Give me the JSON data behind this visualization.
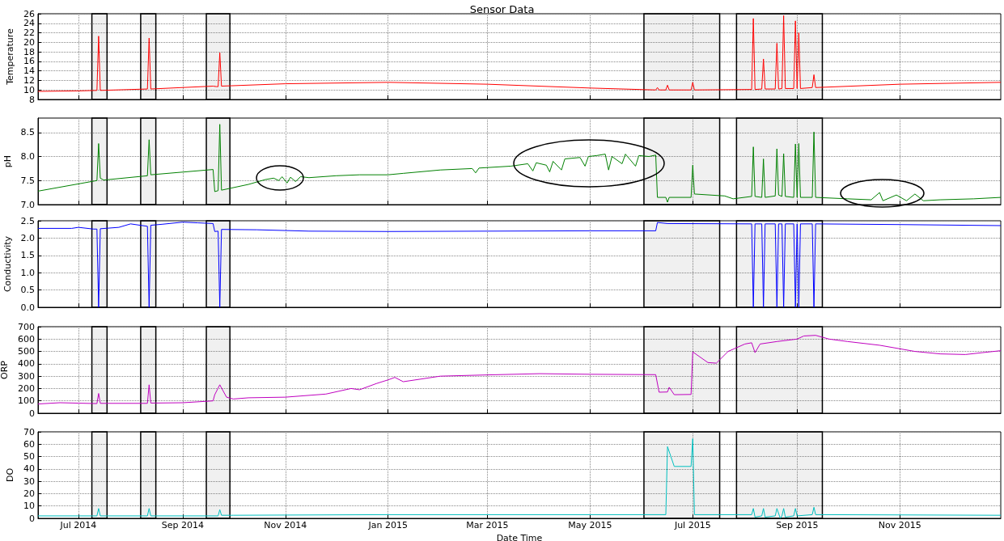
{
  "chart_data": [
    {
      "type": "line",
      "title": "Sensor Data",
      "ylabel": "Temperature",
      "color": "#ff0000",
      "grid": true,
      "tick_labels": "y",
      "xlim": [
        "2014-06-07",
        "2015-12-31"
      ],
      "xticks": [
        {
          "value": "2014-07",
          "label": null
        },
        {
          "value": "2014-09",
          "label": null
        },
        {
          "value": "2014-11",
          "label": null
        },
        {
          "value": "2015-01",
          "label": null
        },
        {
          "value": "2015-03",
          "label": null
        },
        {
          "value": "2015-05",
          "label": null
        },
        {
          "value": "2015-07",
          "label": null
        },
        {
          "value": "2015-09",
          "label": null
        },
        {
          "value": "2015-11",
          "label": null
        }
      ],
      "ylim": [
        8,
        26
      ],
      "yticks": [
        8,
        10,
        12,
        14,
        16,
        18,
        20,
        22,
        24,
        26
      ],
      "bands": [
        {
          "axis": "x",
          "from": "2014-07-09",
          "to": "2014-07-18",
          "color": "#000000"
        },
        {
          "axis": "x",
          "from": "2014-08-07",
          "to": "2014-08-16",
          "color": "#000000"
        },
        {
          "axis": "x",
          "from": "2014-09-15",
          "to": "2014-09-29",
          "color": "#000000"
        },
        {
          "axis": "x",
          "from": "2015-06-02",
          "to": "2015-07-17",
          "color": "#000000"
        },
        {
          "axis": "x",
          "from": "2015-07-27",
          "to": "2015-09-16",
          "color": "#000000"
        }
      ],
      "x": [
        "2014-06-07",
        "2014-07-01",
        "2014-07-12",
        "2014-07-13",
        "2014-07-14",
        "2014-08-11",
        "2014-08-12",
        "2014-08-13",
        "2014-09-19",
        "2014-09-21",
        "2014-09-22",
        "2014-09-23",
        "2014-09-24",
        "2014-11-01",
        "2015-01-01",
        "2015-03-01",
        "2015-05-01",
        "2015-06-09",
        "2015-06-10",
        "2015-06-11",
        "2015-06-15",
        "2015-06-16",
        "2015-06-17",
        "2015-06-30",
        "2015-07-01",
        "2015-07-02",
        "2015-08-05",
        "2015-08-06",
        "2015-08-07",
        "2015-08-11",
        "2015-08-12",
        "2015-08-13",
        "2015-08-19",
        "2015-08-20",
        "2015-08-21",
        "2015-08-23",
        "2015-08-24",
        "2015-08-25",
        "2015-08-30",
        "2015-08-31",
        "2015-09-01",
        "2015-09-02",
        "2015-09-03",
        "2015-09-10",
        "2015-09-11",
        "2015-09-12",
        "2015-11-01",
        "2015-12-31"
      ],
      "values": [
        9.7,
        9.8,
        9.9,
        21.3,
        9.9,
        10.2,
        20.9,
        10.2,
        10.8,
        10.7,
        10.7,
        17.8,
        10.8,
        11.3,
        11.6,
        11.2,
        10.4,
        10.0,
        10.5,
        10.0,
        10.0,
        11.0,
        10.0,
        10.0,
        11.6,
        10.0,
        10.1,
        25.0,
        10.1,
        10.2,
        16.5,
        10.2,
        10.2,
        19.8,
        10.2,
        10.3,
        25.6,
        10.3,
        10.3,
        24.5,
        10.3,
        22.0,
        10.3,
        10.5,
        13.2,
        10.5,
        11.2,
        11.6
      ]
    },
    {
      "type": "line",
      "ylabel": "pH",
      "color": "#008000",
      "grid": true,
      "tick_labels": "y",
      "xlim": [
        "2014-06-07",
        "2015-12-31"
      ],
      "xticks": [
        {
          "value": "2014-07",
          "label": null
        },
        {
          "value": "2014-09",
          "label": null
        },
        {
          "value": "2014-11",
          "label": null
        },
        {
          "value": "2015-01",
          "label": null
        },
        {
          "value": "2015-03",
          "label": null
        },
        {
          "value": "2015-05",
          "label": null
        },
        {
          "value": "2015-07",
          "label": null
        },
        {
          "value": "2015-09",
          "label": null
        },
        {
          "value": "2015-11",
          "label": null
        }
      ],
      "ylim": [
        7.0,
        8.8
      ],
      "yticks": [
        {
          "value": 7,
          "label": "7.0"
        },
        7.5,
        {
          "value": 8,
          "label": "8.0"
        },
        8.5
      ],
      "bands": [
        {
          "axis": "x",
          "from": "2014-07-09",
          "to": "2014-07-18",
          "color": "#000000"
        },
        {
          "axis": "x",
          "from": "2014-08-07",
          "to": "2014-08-16",
          "color": "#000000"
        },
        {
          "axis": "x",
          "from": "2014-09-15",
          "to": "2014-09-29",
          "color": "#000000"
        },
        {
          "axis": "x",
          "from": "2015-06-02",
          "to": "2015-07-17",
          "color": "#000000"
        },
        {
          "axis": "x",
          "from": "2015-07-27",
          "to": "2015-09-16",
          "color": "#000000"
        }
      ],
      "x": [
        "2014-06-07",
        "2014-07-12",
        "2014-07-13",
        "2014-07-14",
        "2014-07-16",
        "2014-08-11",
        "2014-08-12",
        "2014-08-13",
        "2014-09-19",
        "2014-09-20",
        "2014-09-22",
        "2014-09-23",
        "2014-09-24",
        "2014-10-10",
        "2014-10-20",
        "2014-10-25",
        "2014-10-28",
        "2014-10-30",
        "2014-11-02",
        "2014-11-04",
        "2014-11-07",
        "2014-11-10",
        "2014-11-15",
        "2014-12-01",
        "2014-12-15",
        "2015-01-01",
        "2015-01-10",
        "2015-02-01",
        "2015-02-20",
        "2015-02-22",
        "2015-02-24",
        "2015-03-15",
        "2015-03-25",
        "2015-03-28",
        "2015-03-30",
        "2015-04-05",
        "2015-04-07",
        "2015-04-09",
        "2015-04-14",
        "2015-04-16",
        "2015-04-25",
        "2015-04-28",
        "2015-04-30",
        "2015-05-05",
        "2015-05-10",
        "2015-05-12",
        "2015-05-14",
        "2015-05-20",
        "2015-05-22",
        "2015-05-28",
        "2015-05-30",
        "2015-06-05",
        "2015-06-09",
        "2015-06-10",
        "2015-06-15",
        "2015-06-16",
        "2015-06-17",
        "2015-06-30",
        "2015-07-01",
        "2015-07-02",
        "2015-07-20",
        "2015-07-25",
        "2015-08-05",
        "2015-08-06",
        "2015-08-07",
        "2015-08-11",
        "2015-08-12",
        "2015-08-13",
        "2015-08-19",
        "2015-08-20",
        "2015-08-21",
        "2015-08-23",
        "2015-08-24",
        "2015-08-25",
        "2015-08-30",
        "2015-08-31",
        "2015-09-01",
        "2015-09-02",
        "2015-09-03",
        "2015-09-10",
        "2015-09-11",
        "2015-09-12",
        "2015-10-01",
        "2015-10-15",
        "2015-10-20",
        "2015-10-22",
        "2015-10-30",
        "2015-11-05",
        "2015-11-10",
        "2015-11-15",
        "2015-11-25",
        "2015-12-15",
        "2015-12-31"
      ],
      "values": [
        7.28,
        7.5,
        8.27,
        7.55,
        7.51,
        7.6,
        8.35,
        7.62,
        7.73,
        7.27,
        7.29,
        8.67,
        7.3,
        7.42,
        7.52,
        7.55,
        7.5,
        7.58,
        7.45,
        7.57,
        7.48,
        7.58,
        7.56,
        7.6,
        7.62,
        7.62,
        7.65,
        7.72,
        7.75,
        7.66,
        7.76,
        7.8,
        7.85,
        7.7,
        7.87,
        7.82,
        7.68,
        7.9,
        7.72,
        7.95,
        7.98,
        7.8,
        8.0,
        8.02,
        8.05,
        7.72,
        8.0,
        7.85,
        8.05,
        7.8,
        8.02,
        8.0,
        8.03,
        7.15,
        7.15,
        7.05,
        7.15,
        7.15,
        7.82,
        7.22,
        7.18,
        7.12,
        7.17,
        8.2,
        7.17,
        7.15,
        7.95,
        7.15,
        7.18,
        8.16,
        7.2,
        7.17,
        8.06,
        7.17,
        7.15,
        8.26,
        7.15,
        8.27,
        7.15,
        7.15,
        8.51,
        7.15,
        7.12,
        7.1,
        7.25,
        7.08,
        7.2,
        7.08,
        7.22,
        7.08,
        7.1,
        7.12,
        7.15
      ]
    },
    {
      "type": "line",
      "ylabel": "Conductivity",
      "color": "#0000ff",
      "grid": true,
      "tick_labels": "y",
      "xlim": [
        "2014-06-07",
        "2015-12-31"
      ],
      "xticks": [
        {
          "value": "2014-07",
          "label": null
        },
        {
          "value": "2014-09",
          "label": null
        },
        {
          "value": "2014-11",
          "label": null
        },
        {
          "value": "2015-01",
          "label": null
        },
        {
          "value": "2015-03",
          "label": null
        },
        {
          "value": "2015-05",
          "label": null
        },
        {
          "value": "2015-07",
          "label": null
        },
        {
          "value": "2015-09",
          "label": null
        },
        {
          "value": "2015-11",
          "label": null
        }
      ],
      "ylim": [
        0,
        2.5
      ],
      "yticks": [
        {
          "value": 0,
          "label": "0.0"
        },
        0.5,
        {
          "value": 1,
          "label": "1.0"
        },
        1.5,
        {
          "value": 2,
          "label": "2.0"
        },
        2.5
      ],
      "bands": [
        {
          "axis": "x",
          "from": "2014-07-09",
          "to": "2014-07-18",
          "color": "#000000"
        },
        {
          "axis": "x",
          "from": "2014-08-07",
          "to": "2014-08-16",
          "color": "#000000"
        },
        {
          "axis": "x",
          "from": "2014-09-15",
          "to": "2014-09-29",
          "color": "#000000"
        },
        {
          "axis": "x",
          "from": "2015-06-02",
          "to": "2015-07-17",
          "color": "#000000"
        },
        {
          "axis": "x",
          "from": "2015-07-27",
          "to": "2015-09-16",
          "color": "#000000"
        }
      ],
      "x": [
        "2014-06-07",
        "2014-06-27",
        "2014-07-01",
        "2014-07-10",
        "2014-07-12",
        "2014-07-13",
        "2014-07-14",
        "2014-07-25",
        "2014-08-01",
        "2014-08-11",
        "2014-08-12",
        "2014-08-13",
        "2014-08-20",
        "2014-09-01",
        "2014-09-10",
        "2014-09-19",
        "2014-09-20",
        "2014-09-22",
        "2014-09-23",
        "2014-09-24",
        "2014-10-15",
        "2014-11-15",
        "2015-01-01",
        "2015-03-01",
        "2015-05-01",
        "2015-06-09",
        "2015-06-10",
        "2015-06-16",
        "2015-08-05",
        "2015-08-06",
        "2015-08-07",
        "2015-08-11",
        "2015-08-12",
        "2015-08-13",
        "2015-08-19",
        "2015-08-20",
        "2015-08-21",
        "2015-08-23",
        "2015-08-24",
        "2015-08-25",
        "2015-08-30",
        "2015-08-31",
        "2015-09-01",
        "2015-09-02",
        "2015-09-03",
        "2015-09-10",
        "2015-09-11",
        "2015-09-12",
        "2015-11-01",
        "2015-12-31"
      ],
      "values": [
        2.28,
        2.28,
        2.31,
        2.26,
        2.26,
        0,
        2.27,
        2.31,
        2.41,
        2.34,
        0,
        2.37,
        2.4,
        2.46,
        2.44,
        2.42,
        2.19,
        2.2,
        0,
        2.25,
        2.24,
        2.2,
        2.19,
        2.2,
        2.21,
        2.21,
        2.45,
        2.42,
        2.41,
        0,
        2.41,
        2.41,
        0,
        2.41,
        2.41,
        0,
        2.41,
        2.41,
        0,
        2.41,
        2.41,
        0,
        2.41,
        0,
        2.41,
        2.41,
        0,
        2.41,
        2.39,
        2.36
      ]
    },
    {
      "type": "line",
      "ylabel": "ORP",
      "color": "#bf00bf",
      "grid": true,
      "tick_labels": "y",
      "xlim": [
        "2014-06-07",
        "2015-12-31"
      ],
      "xticks": [
        {
          "value": "2014-07",
          "label": null
        },
        {
          "value": "2014-09",
          "label": null
        },
        {
          "value": "2014-11",
          "label": null
        },
        {
          "value": "2015-01",
          "label": null
        },
        {
          "value": "2015-03",
          "label": null
        },
        {
          "value": "2015-05",
          "label": null
        },
        {
          "value": "2015-07",
          "label": null
        },
        {
          "value": "2015-09",
          "label": null
        },
        {
          "value": "2015-11",
          "label": null
        }
      ],
      "ylim": [
        0,
        700
      ],
      "yticks": [
        0,
        100,
        200,
        300,
        400,
        500,
        600,
        700
      ],
      "bands": [
        {
          "axis": "x",
          "from": "2014-07-09",
          "to": "2014-07-18",
          "color": "#000000"
        },
        {
          "axis": "x",
          "from": "2014-08-07",
          "to": "2014-08-16",
          "color": "#000000"
        },
        {
          "axis": "x",
          "from": "2014-09-15",
          "to": "2014-09-29",
          "color": "#000000"
        },
        {
          "axis": "x",
          "from": "2015-06-02",
          "to": "2015-07-17",
          "color": "#000000"
        },
        {
          "axis": "x",
          "from": "2015-07-27",
          "to": "2015-09-16",
          "color": "#000000"
        }
      ],
      "x": [
        "2014-06-07",
        "2014-06-20",
        "2014-07-12",
        "2014-07-13",
        "2014-07-14",
        "2014-08-11",
        "2014-08-12",
        "2014-08-13",
        "2014-09-01",
        "2014-09-19",
        "2014-09-20",
        "2014-09-23",
        "2014-09-27",
        "2014-10-01",
        "2014-10-10",
        "2014-11-01",
        "2014-11-25",
        "2014-12-10",
        "2014-12-15",
        "2014-12-25",
        "2015-01-01",
        "2015-01-05",
        "2015-01-10",
        "2015-02-01",
        "2015-03-01",
        "2015-04-01",
        "2015-05-01",
        "2015-06-09",
        "2015-06-11",
        "2015-06-16",
        "2015-06-17",
        "2015-06-20",
        "2015-06-30",
        "2015-07-01",
        "2015-07-10",
        "2015-07-15",
        "2015-07-22",
        "2015-08-01",
        "2015-08-05",
        "2015-08-07",
        "2015-08-10",
        "2015-08-20",
        "2015-09-01",
        "2015-09-05",
        "2015-09-12",
        "2015-09-20",
        "2015-10-01",
        "2015-10-20",
        "2015-11-10",
        "2015-11-25",
        "2015-12-10",
        "2015-12-20",
        "2015-12-31"
      ],
      "values": [
        75,
        85,
        78,
        160,
        80,
        80,
        230,
        82,
        85,
        100,
        150,
        230,
        130,
        115,
        125,
        130,
        155,
        200,
        190,
        240,
        270,
        290,
        255,
        300,
        310,
        320,
        315,
        312,
        170,
        172,
        210,
        150,
        152,
        496,
        410,
        405,
        500,
        560,
        570,
        490,
        560,
        580,
        600,
        625,
        630,
        600,
        580,
        550,
        500,
        480,
        475,
        490,
        506
      ]
    },
    {
      "type": "line",
      "ylabel": "DO",
      "xlabel": "Date Time",
      "color": "#00bfbf",
      "grid": true,
      "xlim": [
        "2014-06-07",
        "2015-12-31"
      ],
      "xticks": [
        {
          "value": "2014-07",
          "label": "Jul 2014"
        },
        {
          "value": "2014-09",
          "label": "Sep 2014"
        },
        {
          "value": "2014-11",
          "label": "Nov 2014"
        },
        {
          "value": "2015-01",
          "label": "Jan 2015"
        },
        {
          "value": "2015-03",
          "label": "Mar 2015"
        },
        {
          "value": "2015-05",
          "label": "May 2015"
        },
        {
          "value": "2015-07",
          "label": "Jul 2015"
        },
        {
          "value": "2015-09",
          "label": "Sep 2015"
        },
        {
          "value": "2015-11",
          "label": "Nov 2015"
        }
      ],
      "ylim": [
        0,
        70
      ],
      "yticks": [
        0,
        10,
        20,
        30,
        40,
        50,
        60,
        70
      ],
      "bands": [
        {
          "axis": "x",
          "from": "2014-07-09",
          "to": "2014-07-18",
          "color": "#000000"
        },
        {
          "axis": "x",
          "from": "2014-08-07",
          "to": "2014-08-16",
          "color": "#000000"
        },
        {
          "axis": "x",
          "from": "2014-09-15",
          "to": "2014-09-29",
          "color": "#000000"
        },
        {
          "axis": "x",
          "from": "2015-06-02",
          "to": "2015-07-17",
          "color": "#000000"
        },
        {
          "axis": "x",
          "from": "2015-07-27",
          "to": "2015-09-16",
          "color": "#000000"
        }
      ],
      "x": [
        "2014-06-07",
        "2014-07-12",
        "2014-07-13",
        "2014-07-14",
        "2014-08-11",
        "2014-08-12",
        "2014-08-13",
        "2014-09-22",
        "2014-09-23",
        "2014-09-24",
        "2014-10-01",
        "2015-01-01",
        "2015-06-15",
        "2015-06-16",
        "2015-06-20",
        "2015-06-30",
        "2015-07-01",
        "2015-07-02",
        "2015-08-05",
        "2015-08-06",
        "2015-08-07",
        "2015-08-11",
        "2015-08-12",
        "2015-08-13",
        "2015-08-19",
        "2015-08-20",
        "2015-08-22",
        "2015-08-23",
        "2015-08-24",
        "2015-08-25",
        "2015-08-30",
        "2015-08-31",
        "2015-09-01",
        "2015-09-10",
        "2015-09-11",
        "2015-09-12",
        "2015-12-31"
      ],
      "values": [
        2,
        2,
        8,
        2,
        2,
        8,
        2,
        2,
        7,
        2.5,
        2.5,
        3,
        3,
        58,
        42,
        42,
        64.5,
        3,
        3,
        8,
        1,
        2,
        8,
        1,
        2,
        8,
        0,
        2,
        8,
        1,
        2,
        8,
        2,
        3,
        9,
        3,
        2.5
      ]
    }
  ]
}
